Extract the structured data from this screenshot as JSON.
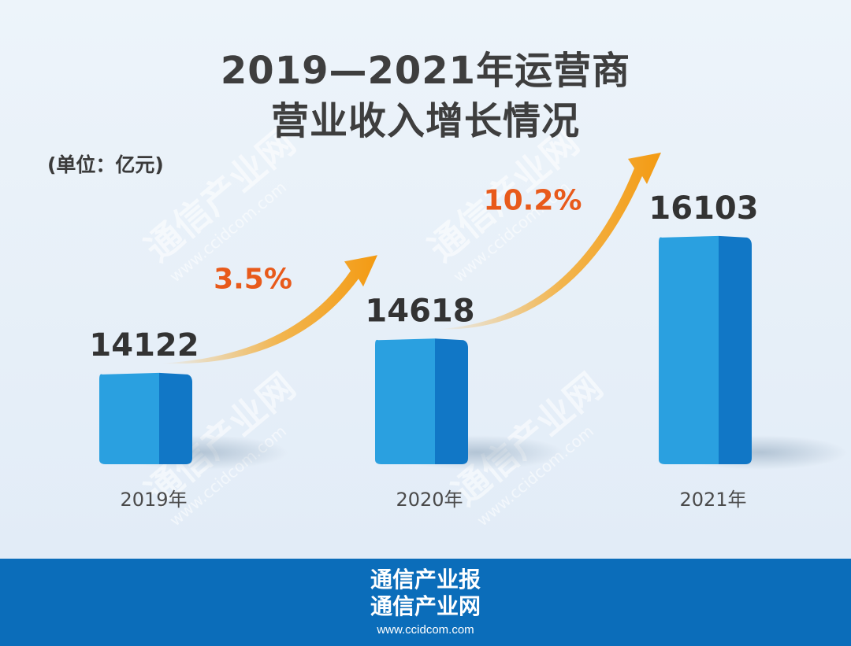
{
  "title_line1": "2019—2021年运营商",
  "title_line2": "营业收入增长情况",
  "unit": "(单位：亿元)",
  "watermark": {
    "name": "通信产业网",
    "url": "www.ccidcom.com"
  },
  "footer": {
    "line1": "通信产业报",
    "line2": "通信产业网",
    "url": "www.ccidcom.com"
  },
  "colors": {
    "bar_front": "#2aa0e0",
    "bar_side": "#1177c6",
    "arrow": "#f5a623",
    "growth_text": "#e85a1b",
    "footer_bg": "#0b6dba"
  },
  "chart_data": {
    "type": "bar",
    "categories": [
      "2019年",
      "2020年",
      "2021年"
    ],
    "values": [
      14122,
      14618,
      16103
    ],
    "growth_labels": [
      "3.5%",
      "10.2%"
    ],
    "ylim": [
      12800,
      16500
    ]
  }
}
